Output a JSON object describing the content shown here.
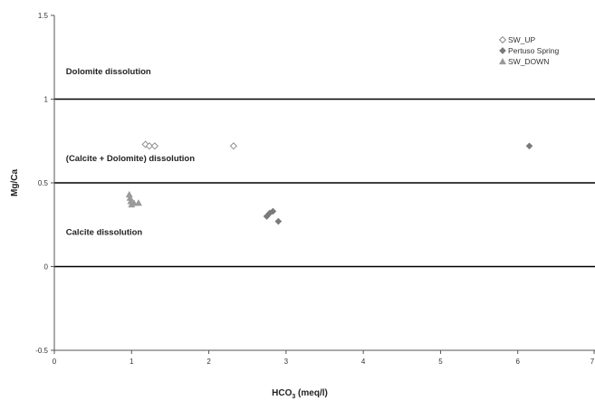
{
  "chart_data": {
    "type": "scatter",
    "title": "",
    "xlabel_main": "HCO",
    "xlabel_sub": "3",
    "xlabel_unit": " (meq/l)",
    "ylabel": "Mg/Ca",
    "xlim": [
      0,
      7
    ],
    "ylim": [
      -0.5,
      1.5
    ],
    "x_ticks": [
      {
        "v": 0,
        "label": "0"
      },
      {
        "v": 1,
        "label": "1"
      },
      {
        "v": 2,
        "label": "2"
      },
      {
        "v": 3,
        "label": "3"
      },
      {
        "v": 4,
        "label": "4"
      },
      {
        "v": 5,
        "label": "5"
      },
      {
        "v": 6,
        "label": "6"
      },
      {
        "v": 7,
        "label": "7"
      }
    ],
    "y_ticks": [
      {
        "v": -0.5,
        "label": "-0.5"
      },
      {
        "v": 0,
        "label": "0"
      },
      {
        "v": 0.5,
        "label": "0.5"
      },
      {
        "v": 1,
        "label": "1"
      },
      {
        "v": 1.5,
        "label": "1.5"
      }
    ],
    "hlines": [
      0,
      0.5,
      1
    ],
    "grid": false,
    "legend_position": "top-right",
    "annotations": [
      {
        "text": "Dolomite dissolution",
        "x": 0.15,
        "y": 1.15
      },
      {
        "text": "(Calcite + Dolomite) dissolution",
        "x": 0.15,
        "y": 0.63
      },
      {
        "text": "Calcite dissolution",
        "x": 0.15,
        "y": 0.19
      }
    ],
    "series": [
      {
        "name": "SW_UP",
        "marker": "diamond-open",
        "color": "#8c8c8c",
        "points": [
          {
            "x": 1.18,
            "y": 0.73
          },
          {
            "x": 1.23,
            "y": 0.72
          },
          {
            "x": 1.3,
            "y": 0.72
          },
          {
            "x": 2.32,
            "y": 0.72
          }
        ]
      },
      {
        "name": "Pertuso Spring",
        "marker": "diamond",
        "color": "#7a7a7a",
        "points": [
          {
            "x": 2.75,
            "y": 0.3
          },
          {
            "x": 2.79,
            "y": 0.32
          },
          {
            "x": 2.83,
            "y": 0.33
          },
          {
            "x": 2.9,
            "y": 0.27
          },
          {
            "x": 6.15,
            "y": 0.72
          }
        ]
      },
      {
        "name": "SW_DOWN",
        "marker": "triangle",
        "color": "#9a9a9a",
        "points": [
          {
            "x": 0.97,
            "y": 0.43
          },
          {
            "x": 0.98,
            "y": 0.41
          },
          {
            "x": 0.99,
            "y": 0.39
          },
          {
            "x": 1.0,
            "y": 0.37
          },
          {
            "x": 1.03,
            "y": 0.38
          },
          {
            "x": 1.09,
            "y": 0.38
          }
        ]
      }
    ]
  }
}
